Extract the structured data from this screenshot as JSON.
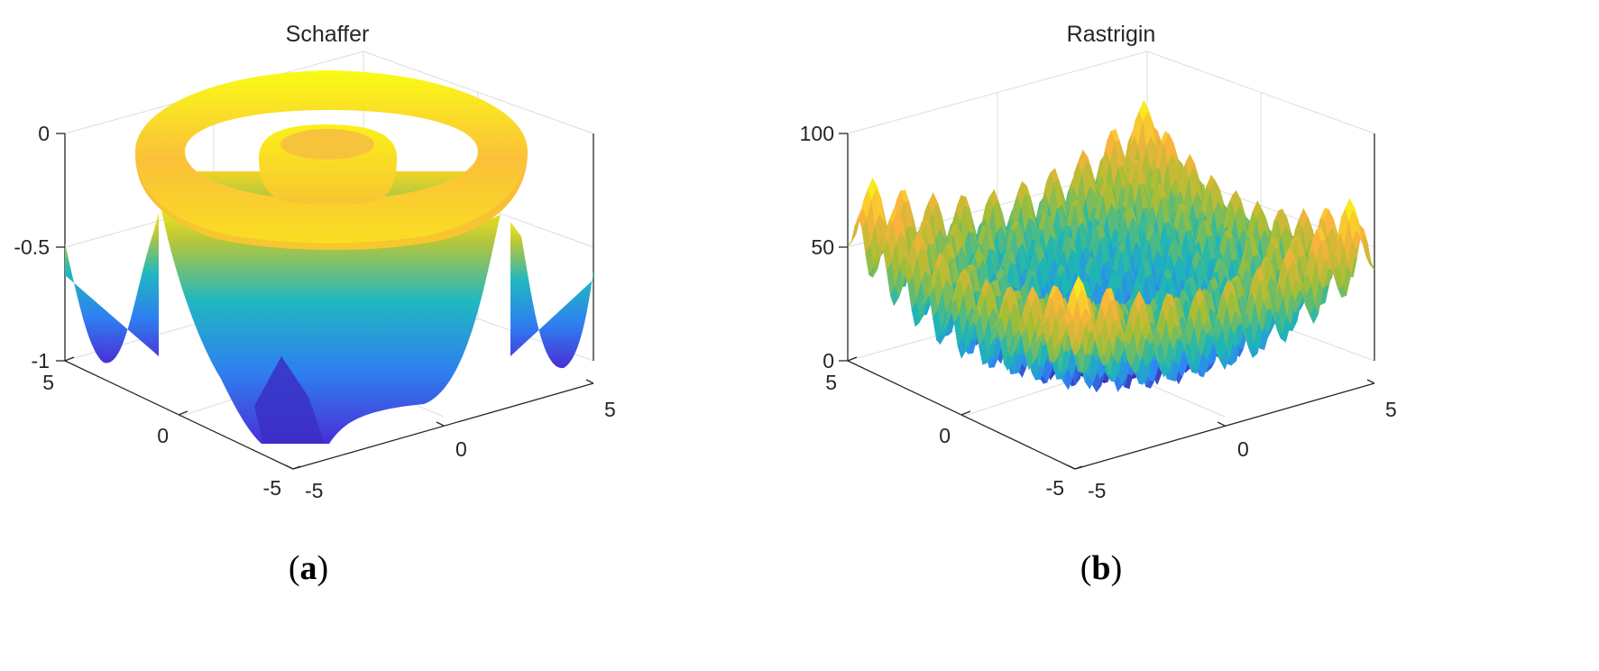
{
  "chart_data": [
    {
      "type": "surface",
      "panel_label": "a",
      "title": "Schaffer",
      "xlim": [
        -5,
        5
      ],
      "ylim": [
        -5,
        5
      ],
      "zlim": [
        -1,
        0
      ],
      "x_ticks": [
        "-5",
        "0",
        "5"
      ],
      "y_ticks": [
        "5",
        "0",
        "-5"
      ],
      "z_ticks": [
        "0",
        "-0.5",
        "-1"
      ],
      "grid": true,
      "colormap": "parula",
      "colors": [
        "#3e26a8",
        "#2e87f7",
        "#1eb8b1",
        "#a5be34",
        "#fbb33b",
        "#f9fb15"
      ]
    },
    {
      "type": "surface",
      "panel_label": "b",
      "title": "Rastrigin",
      "xlim": [
        -5,
        5
      ],
      "ylim": [
        -5,
        5
      ],
      "zlim": [
        0,
        100
      ],
      "x_ticks": [
        "-5",
        "0",
        "5"
      ],
      "y_ticks": [
        "5",
        "0",
        "-5"
      ],
      "z_ticks": [
        "100",
        "50",
        "0"
      ],
      "grid": true,
      "colormap": "parula",
      "colors": [
        "#3e26a8",
        "#2e87f7",
        "#1eb8b1",
        "#a5be34",
        "#fbb33b",
        "#f9fb15"
      ]
    }
  ]
}
